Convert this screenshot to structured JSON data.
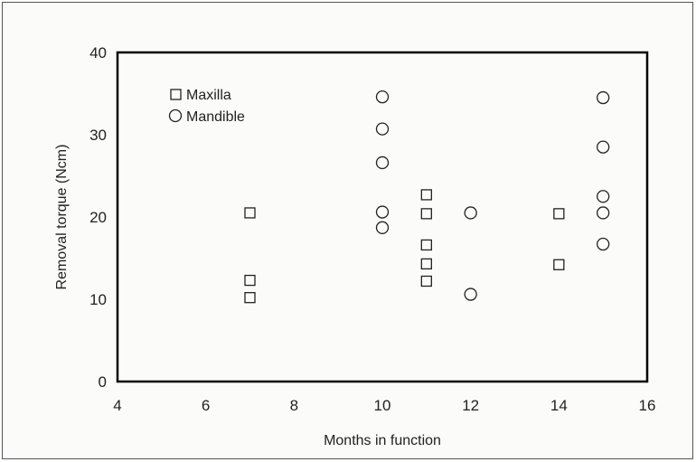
{
  "chart_data": {
    "type": "scatter",
    "xlabel": "Months in function",
    "ylabel": "Removal torque (Ncm)",
    "xlim": [
      4,
      16
    ],
    "ylim": [
      0,
      40
    ],
    "xticks": [
      4,
      6,
      8,
      10,
      12,
      14,
      16
    ],
    "yticks": [
      0,
      10,
      20,
      30,
      40
    ],
    "grid": false,
    "legend_position": "top-left",
    "series": [
      {
        "name": "Maxilla",
        "marker": "square",
        "points": [
          {
            "x": 7,
            "y": 20.5
          },
          {
            "x": 7,
            "y": 12.3
          },
          {
            "x": 7,
            "y": 10.2
          },
          {
            "x": 11,
            "y": 22.7
          },
          {
            "x": 11,
            "y": 20.4
          },
          {
            "x": 11,
            "y": 16.6
          },
          {
            "x": 11,
            "y": 14.3
          },
          {
            "x": 11,
            "y": 12.2
          },
          {
            "x": 14,
            "y": 20.4
          },
          {
            "x": 14,
            "y": 14.2
          }
        ]
      },
      {
        "name": "Mandible",
        "marker": "circle",
        "points": [
          {
            "x": 10,
            "y": 34.6
          },
          {
            "x": 10,
            "y": 30.7
          },
          {
            "x": 10,
            "y": 26.6
          },
          {
            "x": 10,
            "y": 20.6
          },
          {
            "x": 10,
            "y": 18.7
          },
          {
            "x": 12,
            "y": 20.5
          },
          {
            "x": 12,
            "y": 10.6
          },
          {
            "x": 15,
            "y": 34.5
          },
          {
            "x": 15,
            "y": 28.5
          },
          {
            "x": 15,
            "y": 22.5
          },
          {
            "x": 15,
            "y": 20.5
          },
          {
            "x": 15,
            "y": 16.7
          }
        ]
      }
    ]
  }
}
